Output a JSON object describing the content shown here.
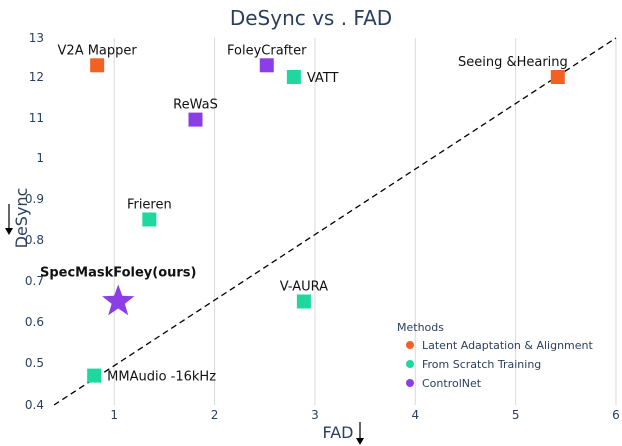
{
  "chart_data": {
    "type": "scatter",
    "title": "DeSync vs . FAD",
    "xlabel": "FAD",
    "ylabel": "DeSync",
    "xlim": [
      0.4,
      6.0
    ],
    "ylim": [
      0.4,
      13
    ],
    "x_ticks": [
      1,
      2,
      3,
      4,
      5,
      6
    ],
    "y_ticks": [
      {
        "label": "0.4",
        "v": 0.4
      },
      {
        "label": "0.5",
        "v": 0.5
      },
      {
        "label": "0.6",
        "v": 0.6
      },
      {
        "label": "0.7",
        "v": 0.7
      },
      {
        "label": "0.8",
        "v": 0.8
      },
      {
        "label": "0.9",
        "v": 0.9
      },
      {
        "label": "1",
        "v": 1.0
      },
      {
        "label": "11",
        "v": 11
      },
      {
        "label": "12",
        "v": 12
      },
      {
        "label": "13",
        "v": 13
      }
    ],
    "grid": true,
    "legend": {
      "title": "Methods",
      "placement": "bottom-right",
      "entries": [
        {
          "name": "Latent Adaptation & Alignment",
          "color": "#f26121"
        },
        {
          "name": "From Scratch Training",
          "color": "#1ed8a0"
        },
        {
          "name": "ControlNet",
          "color": "#8b3ee6"
        }
      ]
    },
    "trend_line": {
      "style": "dashed",
      "color": "#000000"
    },
    "points": [
      {
        "label": "V2A Mapper",
        "x": 0.83,
        "y": 12.3,
        "group": "Latent Adaptation & Alignment",
        "marker": "square",
        "label_pos": "above"
      },
      {
        "label": "Seeing &Hearing",
        "x": 5.42,
        "y": 12.0,
        "group": "Latent Adaptation & Alignment",
        "marker": "square",
        "label_pos": "above-left"
      },
      {
        "label": "FoleyCrafter",
        "x": 2.52,
        "y": 12.3,
        "group": "ControlNet",
        "marker": "square",
        "label_pos": "above"
      },
      {
        "label": "VATT",
        "x": 2.79,
        "y": 12.0,
        "group": "From Scratch Training",
        "marker": "square",
        "label_pos": "right"
      },
      {
        "label": "ReWaS",
        "x": 1.81,
        "y": 10.6,
        "group": "ControlNet",
        "marker": "square",
        "label_pos": "above"
      },
      {
        "label": "Frieren",
        "x": 1.35,
        "y": 0.85,
        "group": "From Scratch Training",
        "marker": "square",
        "label_pos": "above"
      },
      {
        "label": "SpecMaskFoley(ours)",
        "x": 1.04,
        "y": 0.65,
        "group": "ControlNet",
        "marker": "star",
        "label_pos": "above",
        "bold": true
      },
      {
        "label": "V-AURA",
        "x": 2.89,
        "y": 0.65,
        "group": "From Scratch Training",
        "marker": "square",
        "label_pos": "above"
      },
      {
        "label": "MMAudio -16kHz",
        "x": 0.8,
        "y": 0.47,
        "group": "From Scratch Training",
        "marker": "square",
        "label_pos": "right"
      }
    ]
  }
}
